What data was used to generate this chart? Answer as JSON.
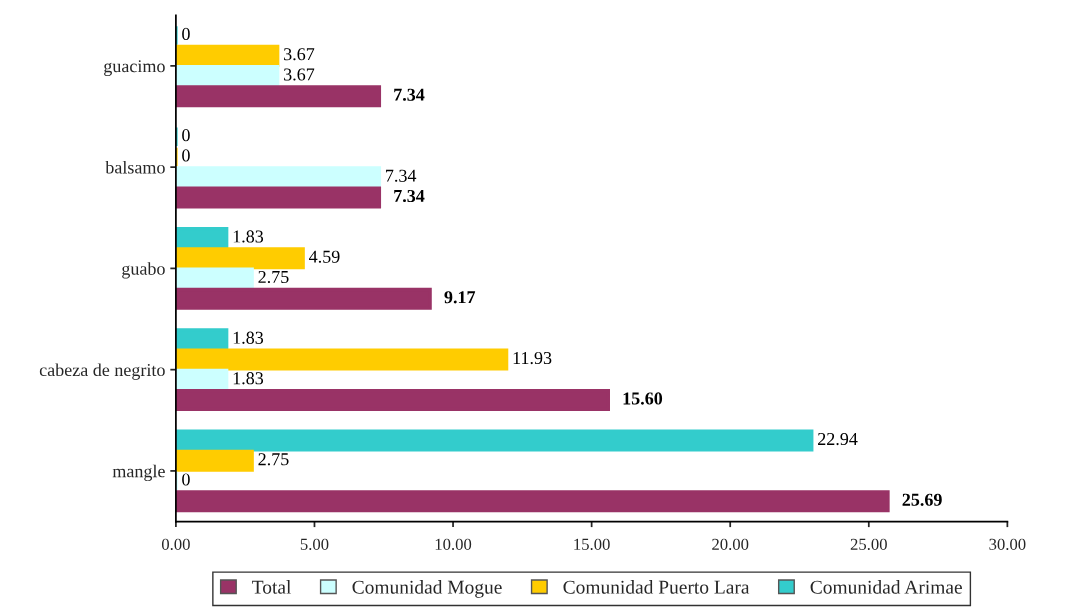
{
  "chart_data": {
    "type": "bar",
    "orientation": "horizontal",
    "categories": [
      "guacimo",
      "balsamo",
      "guabo",
      "cabeza de negrito",
      "mangle"
    ],
    "series": [
      {
        "name": "Comunidad Arimae",
        "color": "#33cccc",
        "values": [
          0,
          0,
          1.83,
          1.83,
          22.94
        ],
        "value_labels": [
          "0",
          "0",
          "1.83",
          "1.83",
          "22.94"
        ]
      },
      {
        "name": "Comunidad Puerto Lara",
        "color": "#ffcc00",
        "values": [
          3.67,
          0,
          4.59,
          11.93,
          2.75
        ],
        "value_labels": [
          "3.67",
          "0",
          "4.59",
          "11.93",
          "2.75"
        ]
      },
      {
        "name": "Comunidad Mogue",
        "color": "#ccffff",
        "values": [
          3.67,
          7.34,
          2.75,
          1.83,
          0
        ],
        "value_labels": [
          "3.67",
          "7.34",
          "2.75",
          "1.83",
          "0"
        ]
      },
      {
        "name": "Total",
        "color": "#993366",
        "values": [
          7.34,
          7.34,
          9.17,
          15.6,
          25.69
        ],
        "value_labels": [
          "7.34",
          "7.34",
          "9.17",
          "15.60",
          "25.69"
        ]
      }
    ],
    "xlim": [
      0,
      30
    ],
    "xticks": [
      {
        "value": 0,
        "label": "0.00"
      },
      {
        "value": 5,
        "label": "5.00"
      },
      {
        "value": 10,
        "label": "10.00"
      },
      {
        "value": 15,
        "label": "15.00"
      },
      {
        "value": 20,
        "label": "20.00"
      },
      {
        "value": 25,
        "label": "25.00"
      },
      {
        "value": 30,
        "label": "30.00"
      }
    ],
    "grid": false,
    "legend": "bottom"
  }
}
